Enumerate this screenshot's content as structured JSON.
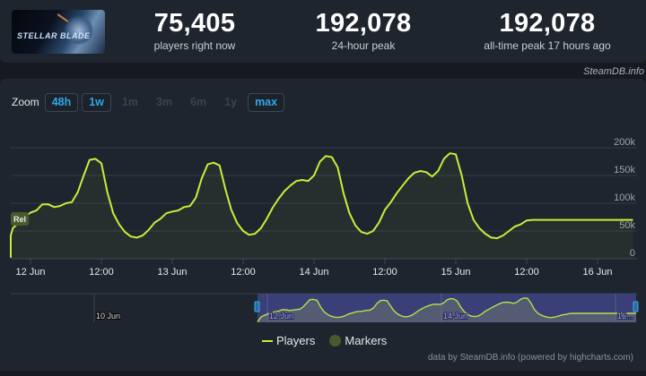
{
  "header": {
    "thumbnail_alt": "Stellar Blade",
    "thumbnail_logo": "STELLAR BLADE",
    "stats": [
      {
        "value": "75,405",
        "label": "players right now"
      },
      {
        "value": "192,078",
        "label": "24-hour peak"
      },
      {
        "value": "192,078",
        "label": "all-time peak 17 hours ago"
      }
    ],
    "credit": "SteamDB.info"
  },
  "zoom": {
    "label": "Zoom",
    "buttons": [
      {
        "label": "48h",
        "active": true
      },
      {
        "label": "1w",
        "active": true
      },
      {
        "label": "1m",
        "active": false
      },
      {
        "label": "3m",
        "active": false
      },
      {
        "label": "6m",
        "active": false
      },
      {
        "label": "1y",
        "active": false
      },
      {
        "label": "max",
        "active": true
      }
    ]
  },
  "marker": {
    "label": "Rel"
  },
  "legend": {
    "players": "Players",
    "markers": "Markers"
  },
  "footer": {
    "credit": "data by SteamDB.info (powered by highcharts.com)"
  },
  "navigator": {
    "labels": [
      "10 Jun",
      "12 Jun",
      "14 Jun",
      "16..."
    ]
  },
  "colors": {
    "line": "#c5f03a",
    "background": "#1f252e",
    "accent": "#2fa7e6",
    "marker": "#4b5a2e",
    "navigator_mask": "#3a3f77"
  },
  "chart_data": {
    "type": "line",
    "title": "",
    "xlabel": "",
    "ylabel": "Players",
    "ylim": [
      0,
      200000
    ],
    "yticks": [
      "0",
      "50k",
      "100k",
      "150k",
      "200k"
    ],
    "xticks": [
      "12 Jun",
      "12:00",
      "13 Jun",
      "12:00",
      "14 Jun",
      "12:00",
      "15 Jun",
      "12:00",
      "16 Jun"
    ],
    "grid": true,
    "legend_position": "bottom",
    "series": [
      {
        "name": "Players",
        "x_hours_from_12Jun": [
          -5,
          -4,
          -3,
          -2,
          -1,
          0,
          1,
          2,
          3,
          4,
          5,
          6,
          7,
          8,
          9,
          10,
          11,
          12,
          13,
          14,
          15,
          16,
          17,
          18,
          19,
          20,
          21,
          22,
          23,
          24,
          25,
          26,
          27,
          28,
          29,
          30,
          31,
          32,
          33,
          34,
          35,
          36,
          37,
          38,
          39,
          40,
          41,
          42,
          43,
          44,
          45,
          46,
          47,
          48,
          49,
          50,
          51,
          52,
          53,
          54,
          55,
          56,
          57,
          58,
          59,
          60,
          61,
          62,
          63,
          64,
          65,
          66,
          67,
          68,
          69,
          70,
          71,
          72,
          73,
          74,
          75,
          76,
          77,
          78,
          79,
          80,
          81,
          82,
          83,
          84,
          85,
          86,
          87,
          88,
          89,
          90,
          91,
          92,
          93,
          94,
          95,
          96,
          97,
          98,
          99,
          100,
          101,
          102,
          103
        ],
        "values": [
          2000,
          42000,
          55000,
          65000,
          75000,
          83000,
          87000,
          98000,
          98000,
          93000,
          95000,
          100000,
          102000,
          120000,
          150000,
          178000,
          180000,
          172000,
          120000,
          82000,
          62000,
          48000,
          40000,
          38000,
          42000,
          52000,
          65000,
          72000,
          82000,
          85000,
          87000,
          93000,
          95000,
          110000,
          145000,
          170000,
          173000,
          168000,
          125000,
          88000,
          64000,
          50000,
          43000,
          45000,
          55000,
          72000,
          92000,
          108000,
          122000,
          132000,
          140000,
          142000,
          140000,
          150000,
          175000,
          185000,
          183000,
          165000,
          118000,
          82000,
          60000,
          48000,
          45000,
          50000,
          65000,
          88000,
          102000,
          118000,
          132000,
          145000,
          155000,
          158000,
          156000,
          148000,
          158000,
          180000,
          190000,
          188000,
          150000,
          100000,
          70000,
          55000,
          45000,
          38000,
          37000,
          42000,
          50000,
          58000,
          62000,
          69000,
          70000,
          70000,
          70000,
          70000,
          70000,
          70000,
          70000,
          70000,
          70000,
          70000,
          70000,
          70000,
          70000,
          70000,
          70000,
          70000,
          70000,
          70000,
          70000
        ]
      }
    ],
    "annotations": [
      {
        "label": "Rel",
        "x": "12 Jun (release)"
      }
    ],
    "peak": 192078,
    "current": 75405
  }
}
